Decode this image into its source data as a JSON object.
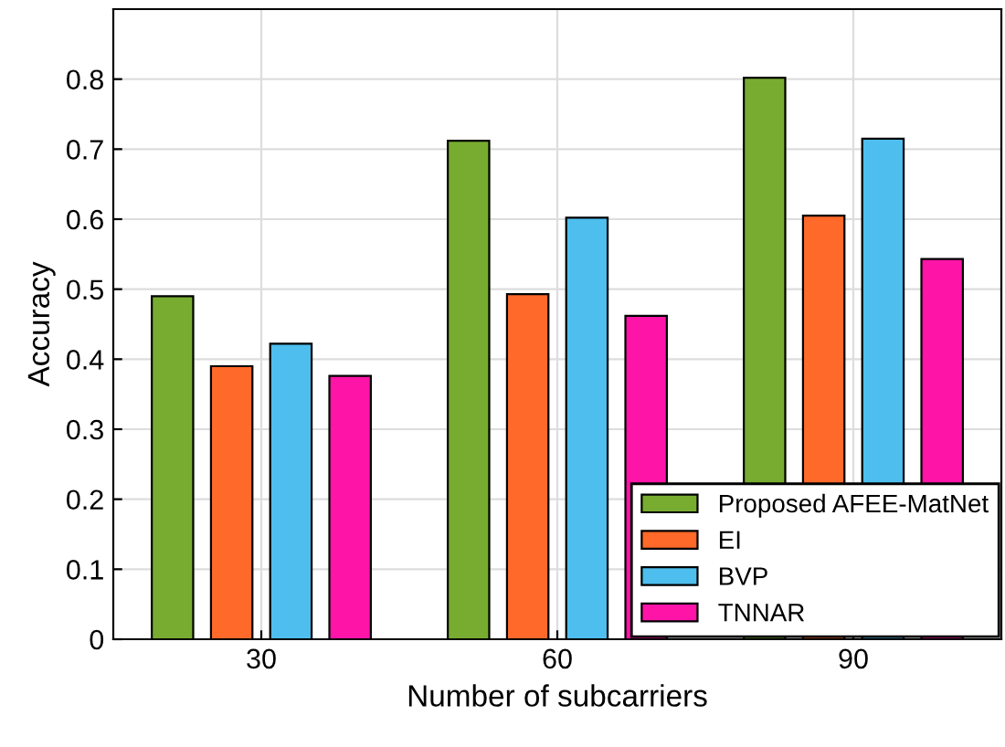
{
  "chart_data": {
    "type": "bar",
    "xlabel": "Number of subcarriers",
    "ylabel": "Accuracy",
    "categories": [
      "30",
      "60",
      "90"
    ],
    "series": [
      {
        "name": "Proposed AFEE-MatNet",
        "color": "#77ac30",
        "values": [
          0.49,
          0.712,
          0.802
        ]
      },
      {
        "name": "EI",
        "color": "#ff6929",
        "values": [
          0.39,
          0.493,
          0.605
        ]
      },
      {
        "name": "BVP",
        "color": "#4dbeee",
        "values": [
          0.422,
          0.602,
          0.715
        ]
      },
      {
        "name": "TNNAR",
        "color": "#ff14a8",
        "values": [
          0.376,
          0.462,
          0.543
        ]
      }
    ],
    "ylim": [
      0,
      0.9
    ],
    "yticks": [
      0,
      0.1,
      0.2,
      0.3,
      0.4,
      0.5,
      0.6,
      0.7,
      0.8
    ],
    "grid": true,
    "legend": "bottom right"
  }
}
